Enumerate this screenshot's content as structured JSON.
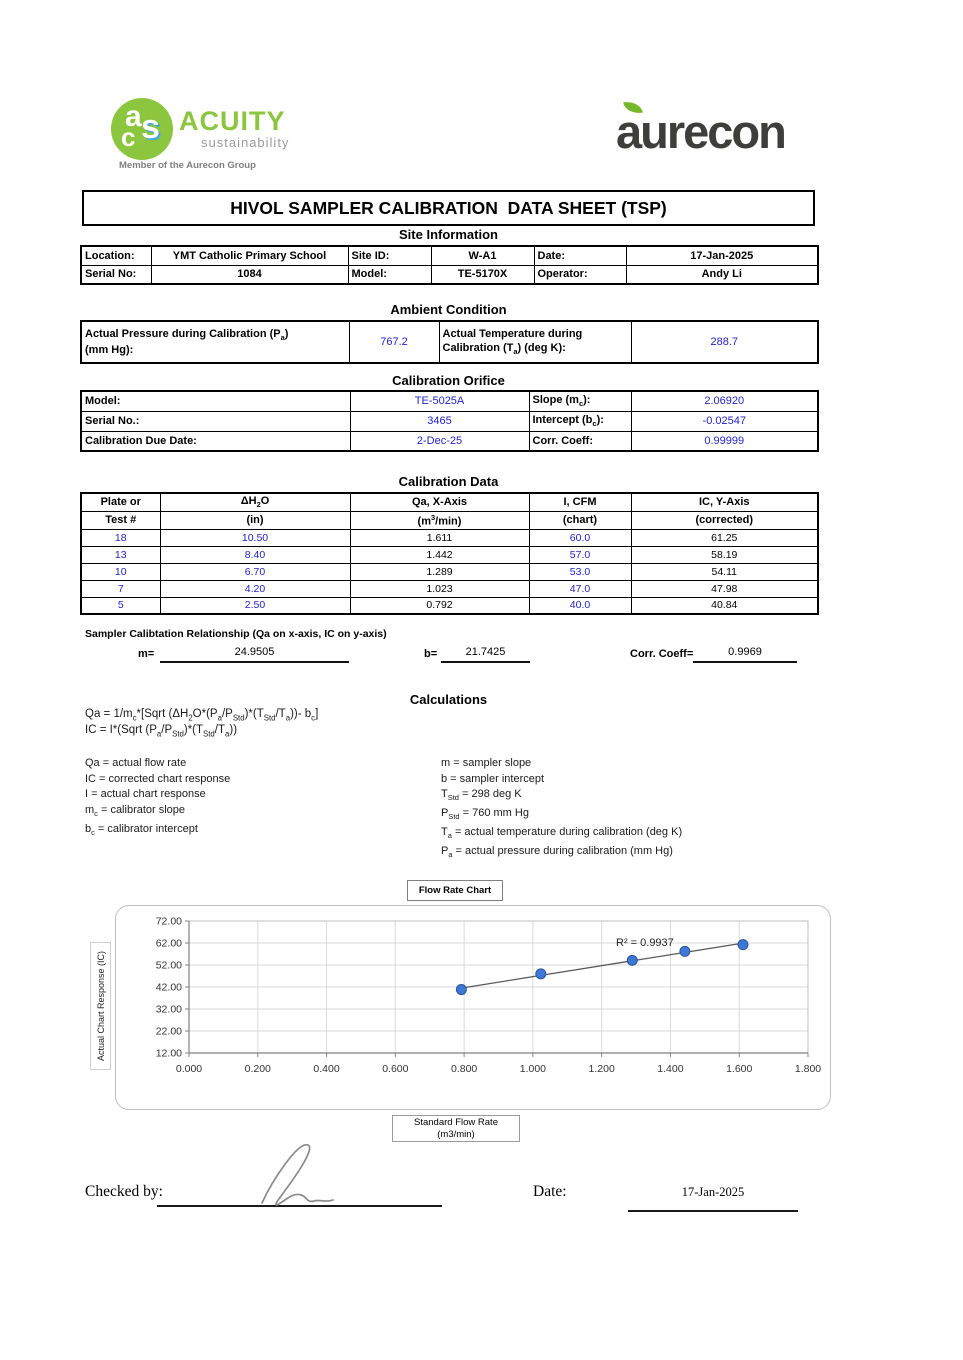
{
  "brand": {
    "acuity": {
      "monogram_a": "a",
      "monogram_c": "c",
      "monogram_s": "s",
      "name": "ACUITY",
      "tagline": "sustainability",
      "member_line": "Member of the Aurecon Group",
      "green": "#8CC63E"
    },
    "aurecon": {
      "wordmark": "aurecon",
      "dark": "#3E3E3D",
      "leaf_green": "#76B82A"
    }
  },
  "title": "HIVOL SAMPLER CALIBRATION  DATA SHEET (TSP)",
  "site_information": {
    "heading": "Site Information",
    "location_label": "Location:",
    "location_value": "YMT Catholic Primary School",
    "site_id_label": "Site ID:",
    "site_id_value": "W-A1",
    "date_label": "Date:",
    "date_value": "17-Jan-2025",
    "serial_label": "Serial No:",
    "serial_value": "1084",
    "model_label": "Model:",
    "model_value": "TE-5170X",
    "operator_label": "Operator:",
    "operator_value": "Andy Li"
  },
  "ambient_condition": {
    "heading": "Ambient Condition",
    "pressure_label_l1": "Actual Pressure during Calibration (P_{a})",
    "pressure_label_l2": "(mm Hg):",
    "pressure_value": "767.2",
    "temperature_label_l1": "Actual Temperature during",
    "temperature_label_l2": "Calibration (T_{a}) (deg K):",
    "temperature_value": "288.7"
  },
  "calibration_orifice": {
    "heading": "Calibration Orifice",
    "rows": [
      {
        "label": "Model:",
        "value": "TE-5025A",
        "label2": "Slope (m_{c}):",
        "value2": "2.06920"
      },
      {
        "label": "Serial No.:",
        "value": "3465",
        "label2": "Intercept (b_{c}):",
        "value2": "-0.02547"
      },
      {
        "label": "Calibration Due Date:",
        "value": "2-Dec-25",
        "label2": "Corr. Coeff:",
        "value2": "0.99999"
      }
    ]
  },
  "calibration_data": {
    "heading": "Calibration Data",
    "headers_line1": [
      "Plate or",
      "ΔH_{2}O",
      "Qa, X-Axis",
      "I, CFM",
      "IC, Y-Axis"
    ],
    "headers_line2": [
      "Test #",
      "(in)",
      "(m^{3}/min)",
      "(chart)",
      "(corrected)"
    ],
    "rows": [
      [
        "18",
        "10.50",
        "1.611",
        "60.0",
        "61.25"
      ],
      [
        "13",
        "8.40",
        "1.442",
        "57.0",
        "58.19"
      ],
      [
        "10",
        "6.70",
        "1.289",
        "53.0",
        "54.11"
      ],
      [
        "7",
        "4.20",
        "1.023",
        "47.0",
        "47.98"
      ],
      [
        "5",
        "2.50",
        "0.792",
        "40.0",
        "40.84"
      ]
    ]
  },
  "sampler_relationship": {
    "heading": "Sampler Calibtation Relationship (Qa on x-axis, IC on y-axis)",
    "m_label": "m=",
    "m_value": "24.9505",
    "b_label": "b=",
    "b_value": "21.7425",
    "coeff_label": "Corr. Coeff=",
    "coeff_value": "0.9969"
  },
  "calculations": {
    "heading": "Calculations",
    "formula1": "Qa = 1/m_{c}*[Sqrt (ΔH_{2}O*(P_{a}/P_{Std})*(T_{Std}/T_{a}))- b_{c}]",
    "formula2": "IC = I*(Sqrt (P_{a}/P_{Std})*(T_{Std}/T_{a}))",
    "left_definitions": [
      "Qa = actual flow rate",
      "IC = corrected chart response",
      "I = actual chart response",
      "m_{c}  = calibrator slope",
      "b_{c}  = calibrator intercept"
    ],
    "right_definitions": [
      "m = sampler slope",
      "b  = sampler intercept",
      "T_{Std} = 298 deg K",
      "P_{Std} = 760 mm Hg",
      "T_{a} = actual temperature during calibration (deg K)",
      "P_{a} = actual pressure during calibration (mm Hg)"
    ]
  },
  "chart_data": {
    "type": "scatter",
    "title": "Flow Rate Chart",
    "xlabel_line1": "Standard Flow Rate",
    "xlabel_line2": "(m3/min)",
    "ylabel": "Actual Chart Response (IC)",
    "x": [
      0.792,
      1.023,
      1.289,
      1.442,
      1.611
    ],
    "y": [
      40.84,
      47.98,
      54.11,
      58.19,
      61.25
    ],
    "trendline": {
      "m": 24.9505,
      "b": 21.7425,
      "r2_label": "R² = 0.9937"
    },
    "xlim": [
      0,
      1.8
    ],
    "ylim": [
      12,
      72
    ],
    "xticks": [
      "0.000",
      "0.200",
      "0.400",
      "0.600",
      "0.800",
      "1.000",
      "1.200",
      "1.400",
      "1.600",
      "1.800"
    ],
    "yticks": [
      "12.00",
      "22.00",
      "32.00",
      "42.00",
      "52.00",
      "62.00",
      "72.00"
    ],
    "grid": true,
    "legend": "none",
    "point_color": "#3B78D8",
    "point_stroke": "#2F5597",
    "line_color": "#595959"
  },
  "footer": {
    "checked_by_label": "Checked by:",
    "date_label": "Date:",
    "date_value": "17-Jan-2025"
  }
}
